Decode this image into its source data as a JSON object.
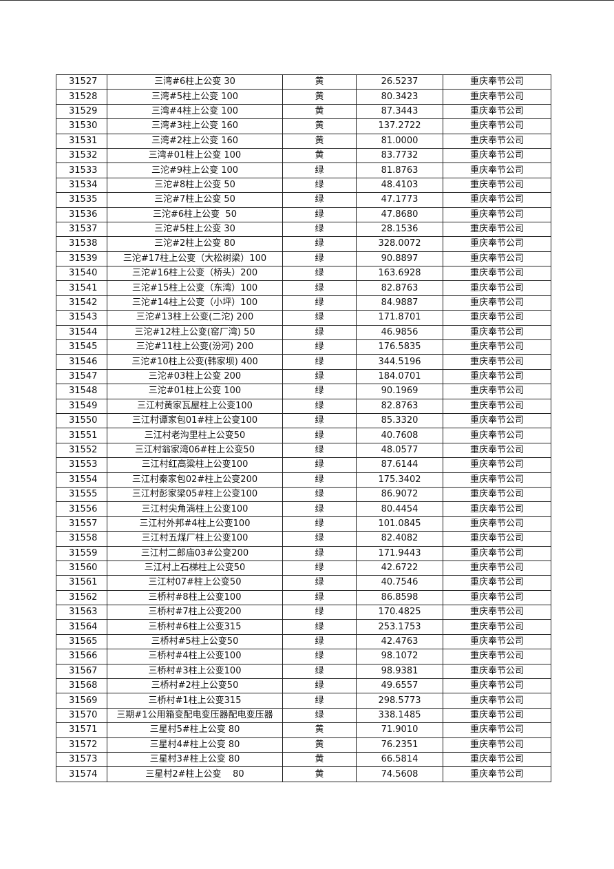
{
  "table": {
    "rows": [
      [
        "31527",
        "三湾#6柱上公变 30",
        "黄",
        "26.5237",
        "重庆奉节公司"
      ],
      [
        "31528",
        "三湾#5柱上公变 100",
        "黄",
        "80.3423",
        "重庆奉节公司"
      ],
      [
        "31529",
        "三湾#4柱上公变 100",
        "黄",
        "87.3443",
        "重庆奉节公司"
      ],
      [
        "31530",
        "三湾#3柱上公变 160",
        "黄",
        "137.2722",
        "重庆奉节公司"
      ],
      [
        "31531",
        "三湾#2柱上公变 160",
        "黄",
        "81.0000",
        "重庆奉节公司"
      ],
      [
        "31532",
        "三湾#01柱上公变 100",
        "黄",
        "83.7732",
        "重庆奉节公司"
      ],
      [
        "31533",
        "三沱#9柱上公变 100",
        "绿",
        "81.8763",
        "重庆奉节公司"
      ],
      [
        "31534",
        "三沱#8柱上公变 50",
        "绿",
        "48.4103",
        "重庆奉节公司"
      ],
      [
        "31535",
        "三沱#7柱上公变 50",
        "绿",
        "47.1773",
        "重庆奉节公司"
      ],
      [
        "31536",
        "三沱#6柱上公变  50",
        "绿",
        "47.8680",
        "重庆奉节公司"
      ],
      [
        "31537",
        "三沱#5柱上公变 30",
        "绿",
        "28.1536",
        "重庆奉节公司"
      ],
      [
        "31538",
        "三沱#2柱上公变 80",
        "绿",
        "328.0072",
        "重庆奉节公司"
      ],
      [
        "31539",
        "三沱#17柱上公变（大松树梁）100",
        "绿",
        "90.8897",
        "重庆奉节公司"
      ],
      [
        "31540",
        "三沱#16柱上公变（桥头）200",
        "绿",
        "163.6928",
        "重庆奉节公司"
      ],
      [
        "31541",
        "三沱#15柱上公变（东湾）100",
        "绿",
        "82.8763",
        "重庆奉节公司"
      ],
      [
        "31542",
        "三沱#14柱上公变（小坪）100",
        "绿",
        "84.9887",
        "重庆奉节公司"
      ],
      [
        "31543",
        "三沱#13柱上公变(二沱) 200",
        "绿",
        "171.8701",
        "重庆奉节公司"
      ],
      [
        "31544",
        "三沱#12柱上公变(窑厂湾) 50",
        "绿",
        "46.9856",
        "重庆奉节公司"
      ],
      [
        "31545",
        "三沱#11柱上公变(汾河) 200",
        "绿",
        "176.5835",
        "重庆奉节公司"
      ],
      [
        "31546",
        "三沱#10柱上公变(韩家坝) 400",
        "绿",
        "344.5196",
        "重庆奉节公司"
      ],
      [
        "31547",
        "三沱#03柱上公变 200",
        "绿",
        "184.0701",
        "重庆奉节公司"
      ],
      [
        "31548",
        "三沱#01柱上公变 100",
        "绿",
        "90.1969",
        "重庆奉节公司"
      ],
      [
        "31549",
        "三江村黄家瓦屋柱上公变100",
        "绿",
        "82.8763",
        "重庆奉节公司"
      ],
      [
        "31550",
        "三江村谭家包01#柱上公变100",
        "绿",
        "85.3320",
        "重庆奉节公司"
      ],
      [
        "31551",
        "三江村老沟里柱上公变50",
        "绿",
        "40.7608",
        "重庆奉节公司"
      ],
      [
        "31552",
        "三江村翁家湾06#柱上公变50",
        "绿",
        "48.0577",
        "重庆奉节公司"
      ],
      [
        "31553",
        "三江村红高粱柱上公变100",
        "绿",
        "87.6144",
        "重庆奉节公司"
      ],
      [
        "31554",
        "三江村秦家包02#柱上公变200",
        "绿",
        "175.3402",
        "重庆奉节公司"
      ],
      [
        "31555",
        "三江村彭家梁05#柱上公变100",
        "绿",
        "86.9072",
        "重庆奉节公司"
      ],
      [
        "31556",
        "三江村尖角淌柱上公变100",
        "绿",
        "80.4454",
        "重庆奉节公司"
      ],
      [
        "31557",
        "三江村外邦#4柱上公变100",
        "绿",
        "101.0845",
        "重庆奉节公司"
      ],
      [
        "31558",
        "三江村五煤厂柱上公变100",
        "绿",
        "82.4082",
        "重庆奉节公司"
      ],
      [
        "31559",
        "三江村二郎庙03#公变200",
        "绿",
        "171.9443",
        "重庆奉节公司"
      ],
      [
        "31560",
        "三江村上石梯柱上公变50",
        "绿",
        "42.6722",
        "重庆奉节公司"
      ],
      [
        "31561",
        "三江村07#柱上公变50",
        "绿",
        "40.7546",
        "重庆奉节公司"
      ],
      [
        "31562",
        "三桥村#8柱上公变100",
        "绿",
        "86.8598",
        "重庆奉节公司"
      ],
      [
        "31563",
        "三桥村#7柱上公变200",
        "绿",
        "170.4825",
        "重庆奉节公司"
      ],
      [
        "31564",
        "三桥村#6柱上公变315",
        "绿",
        "253.1753",
        "重庆奉节公司"
      ],
      [
        "31565",
        "三桥村#5柱上公变50",
        "绿",
        "42.4763",
        "重庆奉节公司"
      ],
      [
        "31566",
        "三桥村#4柱上公变100",
        "绿",
        "98.1072",
        "重庆奉节公司"
      ],
      [
        "31567",
        "三桥村#3柱上公变100",
        "绿",
        "98.9381",
        "重庆奉节公司"
      ],
      [
        "31568",
        "三桥村#2柱上公变50",
        "绿",
        "49.6557",
        "重庆奉节公司"
      ],
      [
        "31569",
        "三桥村#1柱上公变315",
        "绿",
        "298.5773",
        "重庆奉节公司"
      ],
      [
        "31570",
        "三期#1公用箱变配电变压器配电变压器",
        "绿",
        "338.1485",
        "重庆奉节公司"
      ],
      [
        "31571",
        "三星村5#柱上公变 80",
        "黄",
        "71.9010",
        "重庆奉节公司"
      ],
      [
        "31572",
        "三星村4#柱上公变 80",
        "黄",
        "76.2351",
        "重庆奉节公司"
      ],
      [
        "31573",
        "三星村3#柱上公变 80",
        "黄",
        "66.5814",
        "重庆奉节公司"
      ],
      [
        "31574",
        "三星村2#柱上公变    80",
        "黄",
        "74.5608",
        "重庆奉节公司"
      ]
    ]
  }
}
